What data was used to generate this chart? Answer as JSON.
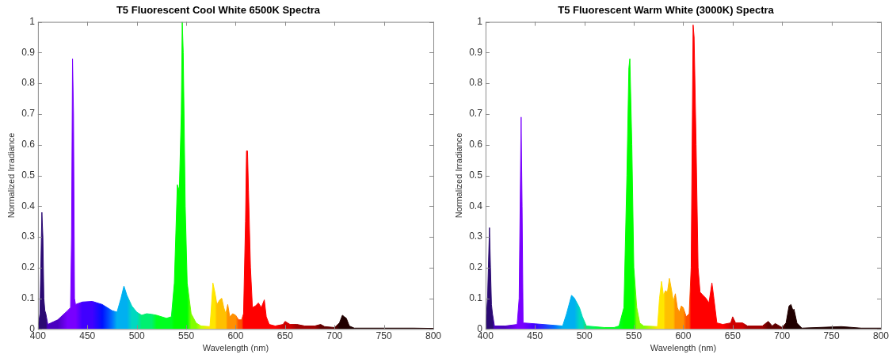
{
  "chart_data": [
    {
      "type": "area",
      "title": "T5 Fluorescent Cool White 6500K Spectra",
      "xlabel": "Wavelength (nm)",
      "ylabel": "Normalized Irradiance",
      "xlim": [
        400,
        800
      ],
      "ylim": [
        0,
        1
      ],
      "xticks": [
        400,
        450,
        500,
        550,
        600,
        650,
        700,
        750,
        800
      ],
      "yticks": [
        0,
        0.1,
        0.2,
        0.3,
        0.4,
        0.5,
        0.6,
        0.7,
        0.8,
        0.9,
        1
      ],
      "x": [
        400,
        402,
        404,
        405,
        406,
        407,
        408,
        410,
        420,
        430,
        433,
        434,
        435,
        436,
        437,
        438,
        445,
        455,
        465,
        475,
        480,
        484,
        487,
        490,
        495,
        500,
        505,
        510,
        515,
        520,
        530,
        535,
        538,
        541,
        543,
        545,
        546,
        547,
        549,
        551,
        555,
        560,
        565,
        574,
        575,
        577,
        579,
        581,
        584,
        586,
        588,
        590,
        592,
        594,
        597,
        600,
        603,
        606,
        608,
        610,
        611,
        612,
        613,
        615,
        617,
        620,
        623,
        626,
        629,
        631,
        634,
        640,
        648,
        650,
        655,
        662,
        670,
        680,
        686,
        690,
        700,
        705,
        708,
        710,
        712,
        715,
        720,
        750,
        780,
        800
      ],
      "values": [
        0,
        0.05,
        0.38,
        0.3,
        0.1,
        0.06,
        0.05,
        0.015,
        0.03,
        0.06,
        0.07,
        0.3,
        0.88,
        0.7,
        0.1,
        0.08,
        0.088,
        0.09,
        0.08,
        0.06,
        0.055,
        0.1,
        0.14,
        0.11,
        0.075,
        0.055,
        0.045,
        0.05,
        0.048,
        0.045,
        0.035,
        0.04,
        0.15,
        0.47,
        0.45,
        0.7,
        1.0,
        0.9,
        0.4,
        0.15,
        0.05,
        0.02,
        0.01,
        0.008,
        0.05,
        0.15,
        0.12,
        0.08,
        0.095,
        0.1,
        0.07,
        0.05,
        0.08,
        0.04,
        0.05,
        0.045,
        0.03,
        0.03,
        0.05,
        0.35,
        0.58,
        0.58,
        0.45,
        0.2,
        0.07,
        0.075,
        0.085,
        0.07,
        0.095,
        0.04,
        0.015,
        0.01,
        0.015,
        0.025,
        0.015,
        0.015,
        0.01,
        0.01,
        0.015,
        0.008,
        0.005,
        0.02,
        0.045,
        0.04,
        0.035,
        0.01,
        0.003,
        0.003,
        0.003,
        0.002
      ],
      "colors": [
        "#2b0a73",
        "#2b0a73",
        "#2b0a73",
        "#2b0a73",
        "#2b0a73",
        "#2b0a73",
        "#2b0a73",
        "#4a00c0",
        "#4a00c0",
        "#7800ff",
        "#7800ff",
        "#7800ff",
        "#7800ff",
        "#7800ff",
        "#7800ff",
        "#7800ff",
        "#4000ff",
        "#4000ff",
        "#0010ff",
        "#0070ff",
        "#00b0f0",
        "#00b0f0",
        "#00b0f0",
        "#00b0f0",
        "#00d8c0",
        "#00d8c0",
        "#00f070",
        "#00f070",
        "#00f070",
        "#00ff20",
        "#00ff20",
        "#00ff20",
        "#00ff00",
        "#00ff00",
        "#00ff00",
        "#00ff00",
        "#00ff00",
        "#00ff00",
        "#00ff00",
        "#00ff00",
        "#80ff00",
        "#80ff00",
        "#c8ff00",
        "#ffe600",
        "#ffe600",
        "#ffe600",
        "#ffe600",
        "#ffc000",
        "#ffc000",
        "#ffc000",
        "#ffc000",
        "#ffc000",
        "#ff9000",
        "#ff9000",
        "#ff9000",
        "#ff9000",
        "#ff5000",
        "#ff5000",
        "#ff0000",
        "#ff0000",
        "#ff0000",
        "#ff0000",
        "#ff0000",
        "#ff0000",
        "#ff0000",
        "#ff0000",
        "#ff0000",
        "#ff0000",
        "#ff0000",
        "#ff0000",
        "#ff0000",
        "#ff0000",
        "#d00000",
        "#d00000",
        "#d00000",
        "#a00000",
        "#a00000",
        "#a00000",
        "#600000",
        "#600000",
        "#600000",
        "#200000",
        "#200000",
        "#200000",
        "#200000",
        "#200000",
        "#200000",
        "#200000",
        "#200000",
        "#200000"
      ]
    },
    {
      "type": "area",
      "title": "T5 Fluorescent Warm White (3000K) Spectra",
      "xlabel": "Wavelength (nm)",
      "ylabel": "Normalized Irradiance",
      "xlim": [
        400,
        800
      ],
      "ylim": [
        0,
        1
      ],
      "xticks": [
        400,
        450,
        500,
        550,
        600,
        650,
        700,
        750,
        800
      ],
      "yticks": [
        0,
        0.1,
        0.2,
        0.3,
        0.4,
        0.5,
        0.6,
        0.7,
        0.8,
        0.9,
        1
      ],
      "x": [
        400,
        402,
        404,
        405,
        406,
        407,
        409,
        420,
        432,
        434,
        436,
        437,
        438,
        450,
        470,
        478,
        482,
        487,
        490,
        495,
        498,
        502,
        520,
        530,
        535,
        540,
        543,
        545,
        546,
        548,
        550,
        553,
        556,
        560,
        574,
        576,
        578,
        580,
        582,
        584,
        586,
        588,
        590,
        592,
        594,
        596,
        598,
        600,
        603,
        606,
        608,
        610,
        611,
        613,
        615,
        617,
        620,
        623,
        626,
        629,
        631,
        634,
        640,
        648,
        650,
        653,
        660,
        665,
        680,
        686,
        690,
        693,
        700,
        704,
        707,
        709,
        711,
        712,
        715,
        720,
        760,
        780,
        800
      ],
      "values": [
        0,
        0.1,
        0.33,
        0.2,
        0.08,
        0.05,
        0.01,
        0.01,
        0.015,
        0.1,
        0.69,
        0.4,
        0.02,
        0.017,
        0.012,
        0.01,
        0.05,
        0.11,
        0.1,
        0.07,
        0.04,
        0.01,
        0.005,
        0.005,
        0.01,
        0.07,
        0.5,
        0.85,
        0.88,
        0.6,
        0.2,
        0.07,
        0.02,
        0.01,
        0.008,
        0.1,
        0.155,
        0.11,
        0.125,
        0.12,
        0.165,
        0.13,
        0.09,
        0.115,
        0.07,
        0.055,
        0.075,
        0.07,
        0.04,
        0.05,
        0.2,
        0.99,
        0.95,
        0.6,
        0.2,
        0.12,
        0.11,
        0.1,
        0.085,
        0.15,
        0.1,
        0.02,
        0.015,
        0.02,
        0.04,
        0.02,
        0.02,
        0.01,
        0.01,
        0.025,
        0.01,
        0.018,
        0.005,
        0.02,
        0.075,
        0.08,
        0.06,
        0.065,
        0.02,
        0.003,
        0.008,
        0.003,
        0.003
      ],
      "colors": [
        "#2b0a73",
        "#2b0a73",
        "#2b0a73",
        "#2b0a73",
        "#2b0a73",
        "#2b0a73",
        "#4a00c0",
        "#4a00c0",
        "#7800ff",
        "#7800ff",
        "#7800ff",
        "#7800ff",
        "#7800ff",
        "#4000ff",
        "#0070ff",
        "#00b0f0",
        "#00b0f0",
        "#00b0f0",
        "#00b0f0",
        "#00d8c0",
        "#00d8c0",
        "#00f070",
        "#00ff20",
        "#00ff20",
        "#00ff20",
        "#00ff00",
        "#00ff00",
        "#00ff00",
        "#00ff00",
        "#00ff00",
        "#00ff00",
        "#80ff00",
        "#80ff00",
        "#80ff00",
        "#ffe600",
        "#ffe600",
        "#ffe600",
        "#ffe600",
        "#ffc000",
        "#ffc000",
        "#ffc000",
        "#ffc000",
        "#ffc000",
        "#ff9000",
        "#ff9000",
        "#ff9000",
        "#ff9000",
        "#ff9000",
        "#ff5000",
        "#ff5000",
        "#ff0000",
        "#ff0000",
        "#ff0000",
        "#ff0000",
        "#ff0000",
        "#ff0000",
        "#ff0000",
        "#ff0000",
        "#ff0000",
        "#ff0000",
        "#ff0000",
        "#ff0000",
        "#ff0000",
        "#d00000",
        "#d00000",
        "#d00000",
        "#d00000",
        "#a00000",
        "#a00000",
        "#600000",
        "#600000",
        "#600000",
        "#600000",
        "#200000",
        "#200000",
        "#200000",
        "#200000",
        "#200000",
        "#200000",
        "#200000",
        "#200000",
        "#200000",
        "#200000"
      ]
    }
  ]
}
